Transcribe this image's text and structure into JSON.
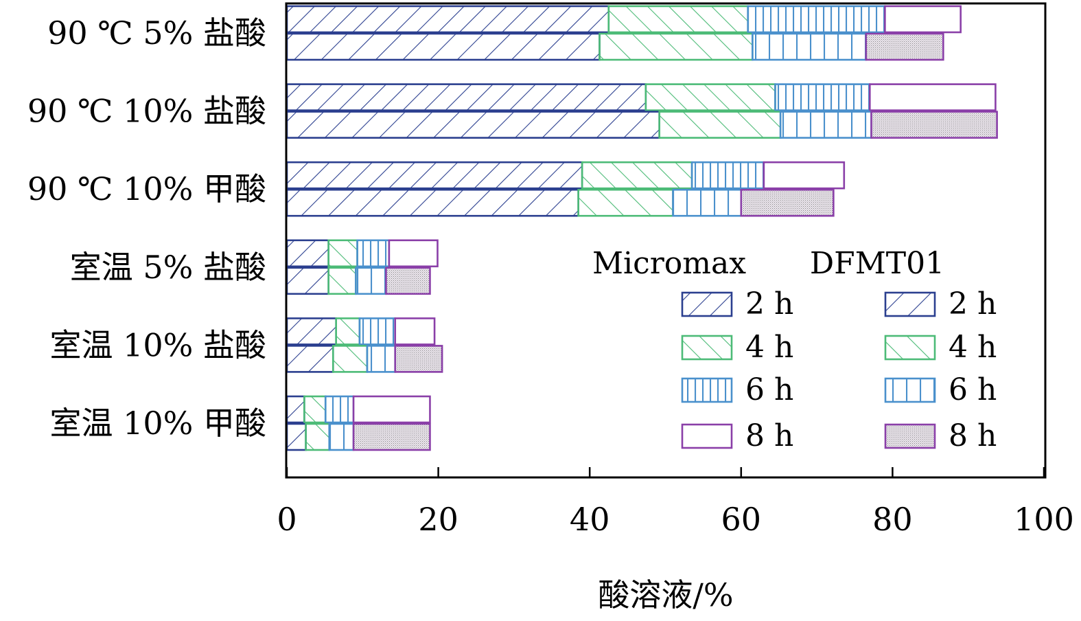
{
  "chart_data": {
    "type": "bar",
    "orientation": "horizontal",
    "stacked": true,
    "xlabel": "酸溶液/%",
    "ylabel": "",
    "xlim": [
      0,
      100
    ],
    "xticks": [
      "0",
      "20",
      "40",
      "60",
      "80",
      "100"
    ],
    "tick_values": [
      0,
      20,
      40,
      60,
      80,
      100
    ],
    "categories": [
      "90 ℃ 5% 盐酸",
      "90 ℃ 10% 盐酸",
      "90 ℃ 10% 甲酸",
      "室温 5% 盐酸",
      "室温 10% 盐酸",
      "室温 10% 甲酸"
    ],
    "legend_position": "bottom-right",
    "legend": {
      "groups": [
        "Micromax",
        "DFMT01"
      ],
      "items": [
        "2 h",
        "4 h",
        "6 h",
        "8 h"
      ]
    },
    "time_colors": [
      "#2b3f8f",
      "#4cbb77",
      "#4a90cc",
      "#8a3fa8"
    ],
    "series": [
      {
        "name": "Micromax",
        "cumulative": [
          [
            42.5,
            60.9,
            79,
            89
          ],
          [
            47.4,
            64.5,
            77,
            93.6
          ],
          [
            39,
            53.5,
            63,
            73.6
          ],
          [
            5.5,
            9.3,
            13.5,
            19.9
          ],
          [
            6.5,
            9.6,
            14.3,
            19.5
          ],
          [
            2.3,
            5.1,
            8.8,
            18.9
          ]
        ]
      },
      {
        "name": "DFMT01",
        "cumulative": [
          [
            41.3,
            61.5,
            76.5,
            86.7
          ],
          [
            49.2,
            65.2,
            77.2,
            93.8
          ],
          [
            38.5,
            51,
            60,
            72.2
          ],
          [
            5.5,
            9.1,
            13.1,
            18.9
          ],
          [
            6.1,
            10.6,
            14.3,
            20.5
          ],
          [
            2.5,
            5.6,
            8.8,
            18.9
          ]
        ]
      }
    ]
  }
}
